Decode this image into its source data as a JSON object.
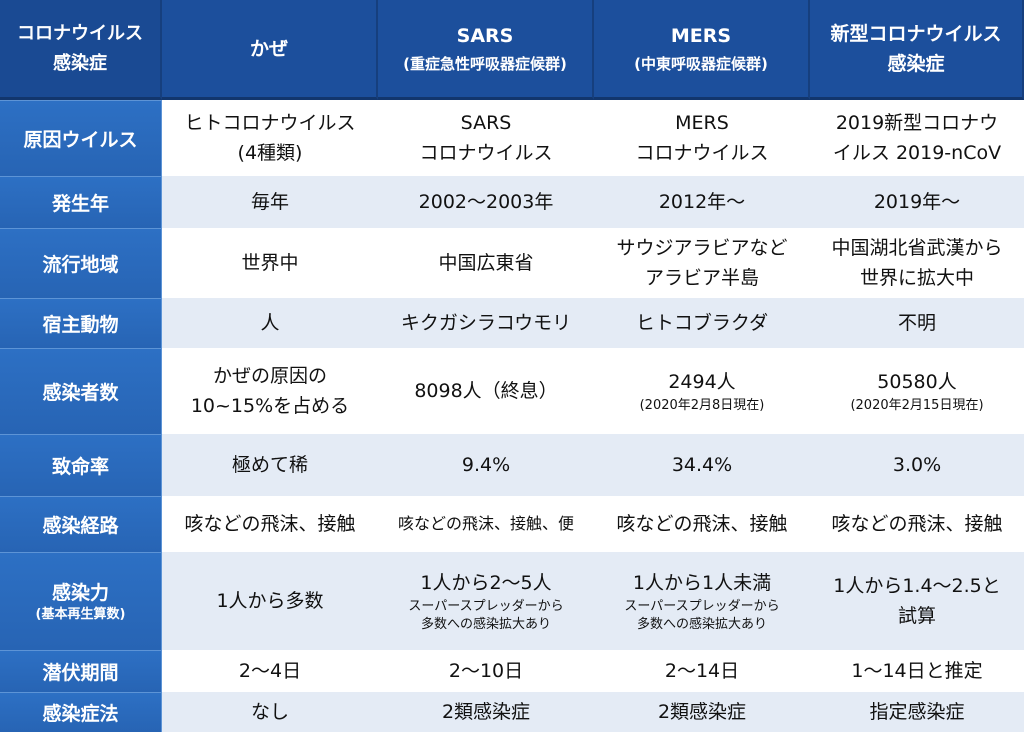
{
  "header": {
    "corner": [
      "コロナウイルス",
      "感染症"
    ],
    "columns": [
      {
        "name": "かぜ",
        "sub": ""
      },
      {
        "name": "SARS",
        "sub": "(重症急性呼吸器症候群)"
      },
      {
        "name": "MERS",
        "sub": "(中東呼吸器症候群)"
      },
      {
        "name": "新型コロナウイルス",
        "sub": "感染症"
      }
    ]
  },
  "rows": {
    "cause": {
      "label": "原因ウイルス",
      "cells": [
        [
          "ヒトコロナウイルス",
          "(4種類)"
        ],
        [
          "SARS",
          "コロナウイルス"
        ],
        [
          "MERS",
          "コロナウイルス"
        ],
        [
          "2019新型コロナウ",
          "イルス 2019-nCoV"
        ]
      ]
    },
    "year": {
      "label": "発生年",
      "cells": [
        "毎年",
        "2002〜2003年",
        "2012年〜",
        "2019年〜"
      ]
    },
    "region": {
      "label": "流行地域",
      "cells": [
        [
          "世界中"
        ],
        [
          "中国広東省"
        ],
        [
          "サウジアラビアなど",
          "アラビア半島"
        ],
        [
          "中国湖北省武漢から",
          "世界に拡大中"
        ]
      ]
    },
    "host": {
      "label": "宿主動物",
      "cells": [
        "人",
        "キクガシラコウモリ",
        "ヒトコブラクダ",
        "不明"
      ]
    },
    "infected": {
      "label": "感染者数",
      "cells": [
        {
          "main": "かぜの原因の",
          "main2": "10~15%を占める",
          "note": ""
        },
        {
          "main": "8098人（終息）",
          "main2": "",
          "note": ""
        },
        {
          "main": "2494人",
          "main2": "",
          "note": "(2020年2月8日現在)"
        },
        {
          "main": "50580人",
          "main2": "",
          "note": "(2020年2月15日現在)"
        }
      ]
    },
    "fatality": {
      "label": "致命率",
      "cells": [
        "極めて稀",
        "9.4%",
        "34.4%",
        "3.0%"
      ]
    },
    "route": {
      "label": "感染経路",
      "cells": [
        "咳などの飛沫、接触",
        "咳などの飛沫、接触、便",
        "咳などの飛沫、接触",
        "咳などの飛沫、接触"
      ]
    },
    "infectivity": {
      "label": "感染力",
      "label_sub": "(基本再生算数)",
      "cells": [
        {
          "main": "1人から多数",
          "main2": "",
          "note1": "",
          "note2": ""
        },
        {
          "main": "1人から2〜5人",
          "main2": "",
          "note1": "スーパースプレッダーから",
          "note2": "多数への感染拡大あり"
        },
        {
          "main": "1人から1人未満",
          "main2": "",
          "note1": "スーパースプレッダーから",
          "note2": "多数への感染拡大あり"
        },
        {
          "main": "1人から1.4〜2.5と",
          "main2": "試算",
          "note1": "",
          "note2": ""
        }
      ]
    },
    "incubation": {
      "label": "潜伏期間",
      "cells": [
        "2〜4日",
        "2〜10日",
        "2〜14日",
        "1〜14日と推定"
      ]
    },
    "law": {
      "label": "感染症法",
      "cells": [
        "なし",
        "2類感染症",
        "2類感染症",
        "指定感染症"
      ]
    }
  }
}
